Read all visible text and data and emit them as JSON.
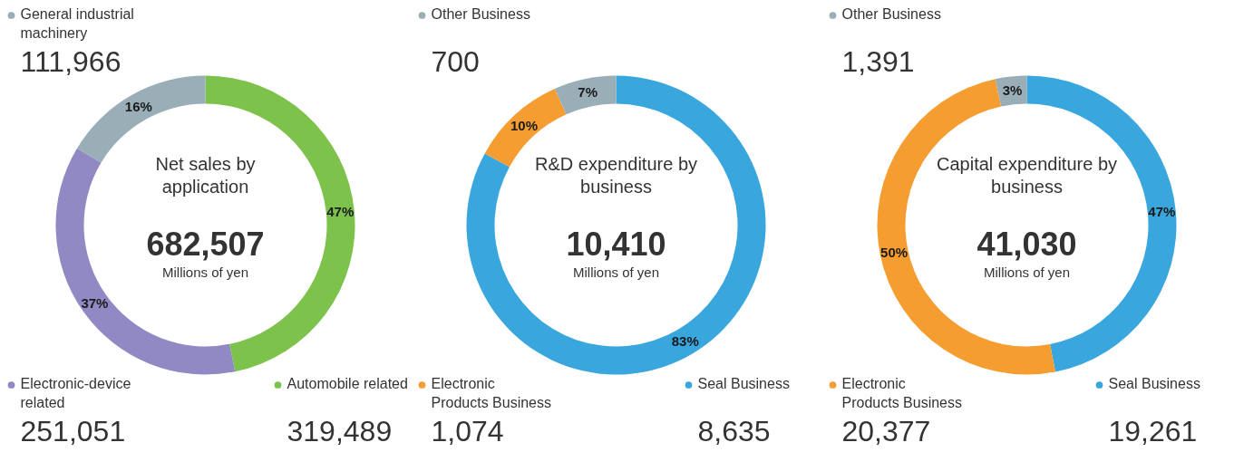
{
  "chart_data": [
    {
      "type": "donut",
      "title": "Net sales by application",
      "categories": [
        "Automobile related",
        "Electronic-device related",
        "General industrial machinery"
      ],
      "values": [
        319489,
        251051,
        111966
      ],
      "colors": [
        "#7dc24b",
        "#9089c4",
        "#9aaeb8"
      ],
      "value_labels": [
        "319,489",
        "251,051",
        "111,966"
      ],
      "legend": "top right",
      "annotations": [
        "682,507",
        "Millions of yen",
        {
          "text": "47%",
          "x": "Automobile related"
        },
        {
          "text": "37%",
          "x": "Electronic-device related"
        },
        {
          "text": "16%",
          "x": "General industrial machinery"
        }
      ]
    },
    {
      "type": "donut",
      "title": "R&D expenditure by business",
      "categories": [
        "Seal Business",
        "Electronic Products Business",
        "Other Business"
      ],
      "values": [
        8635,
        1074,
        700
      ],
      "colors": [
        "#39a7de",
        "#f59d31",
        "#9aaeb8"
      ],
      "value_labels": [
        "8,635",
        "1,074",
        "700"
      ],
      "legend": "top left",
      "annotations": [
        "10,410",
        "Millions of yen",
        {
          "text": "83%",
          "x": "Seal Business"
        },
        {
          "text": "10%",
          "x": "Electronic Products Business"
        },
        {
          "text": "7%",
          "x": "Other Business"
        }
      ]
    },
    {
      "type": "donut",
      "title": "Capital expenditure by business",
      "categories": [
        "Seal Business",
        "Electronic Products Business",
        "Other Business"
      ],
      "values": [
        19261,
        20377,
        1391
      ],
      "colors": [
        "#39a7de",
        "#f59d31",
        "#9aaeb8"
      ],
      "value_labels": [
        "19,261",
        "20,377",
        "1,391"
      ],
      "legend": "top left",
      "annotations": [
        "41,030",
        "Millions of yen",
        {
          "text": "47%",
          "x": "Seal Business"
        },
        {
          "text": "50%",
          "x": "Electronic Products Business"
        },
        {
          "text": "3%",
          "x": "Other Business"
        }
      ]
    }
  ]
}
